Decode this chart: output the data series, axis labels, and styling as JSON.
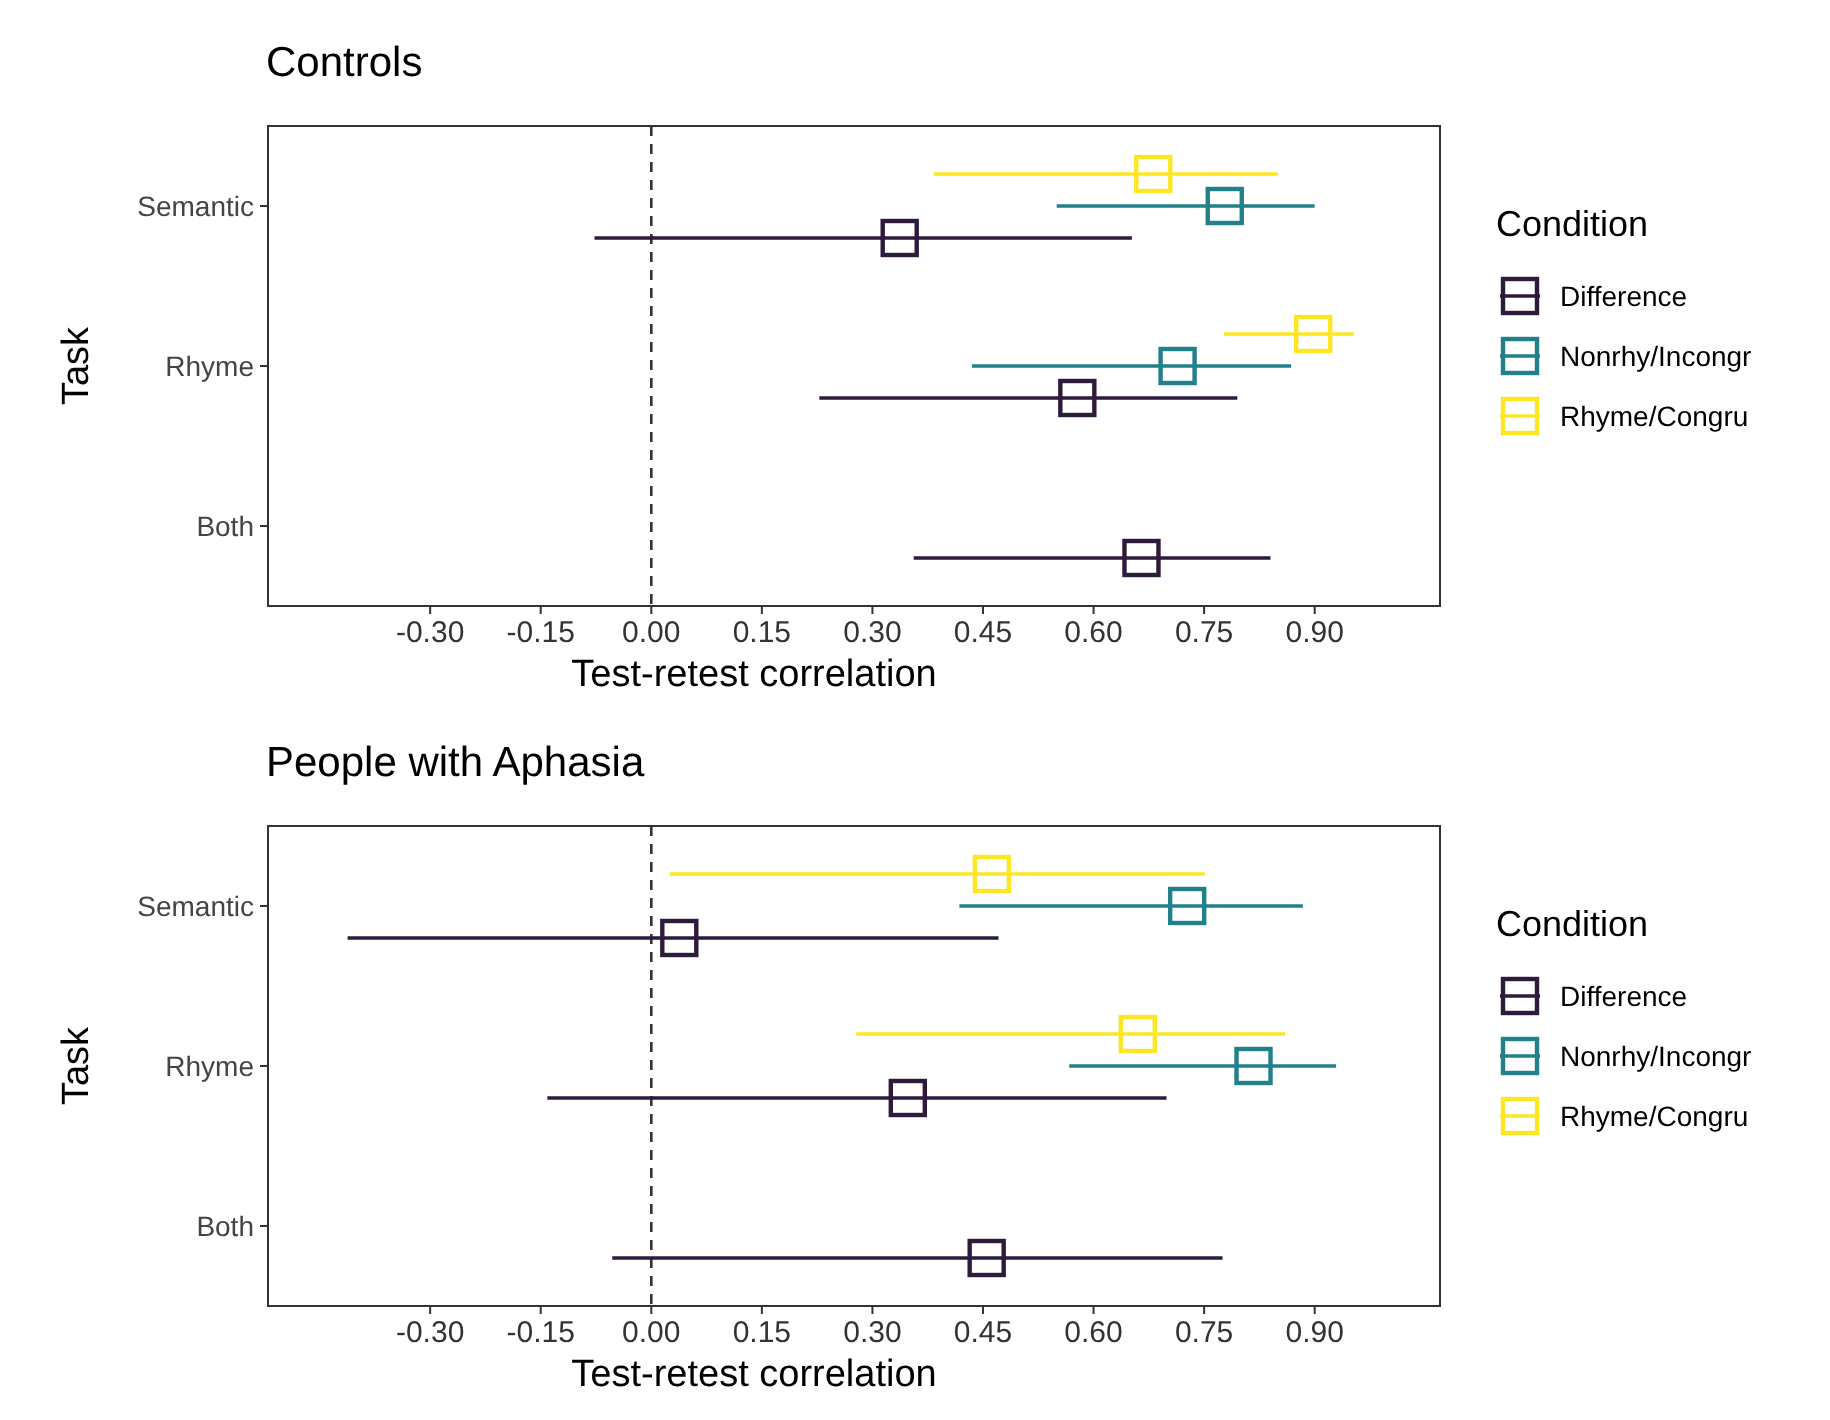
{
  "chart_data": [
    {
      "type": "scatter",
      "title": "Controls",
      "xlabel": "Test-retest correlation",
      "ylabel": "Task",
      "legend_title": "Condition",
      "orientation": "horizontal",
      "categories": [
        "Semantic",
        "Rhyme",
        "Both"
      ],
      "xlim": [
        -0.52,
        1.07
      ],
      "xticks": [
        {
          "value": -0.3,
          "label": "-0.30"
        },
        -0.15,
        {
          "value": 0,
          "label": "0.00"
        },
        0.15,
        {
          "value": 0.3,
          "label": "0.30"
        },
        0.45,
        {
          "value": 0.6,
          "label": "0.60"
        },
        0.75,
        {
          "value": 0.9,
          "label": "0.90"
        }
      ],
      "marker": "square",
      "grid": false,
      "legend": "right",
      "ref_lines": [
        {
          "axis": "x",
          "value": 0,
          "line_style": "dashed",
          "color": "#333333"
        }
      ],
      "series": [
        {
          "name": "Difference",
          "color": "#2e1a3b",
          "values": [
            0.337,
            0.578,
            0.665
          ],
          "errors": [
            [
              -0.077,
              0.652
            ],
            [
              0.228,
              0.795
            ],
            [
              0.356,
              0.84
            ]
          ]
        },
        {
          "name": "Nonrhy/Incongr",
          "color": "#21808a",
          "values": [
            0.778,
            0.714,
            null
          ],
          "errors": [
            [
              0.55,
              0.9
            ],
            [
              0.435,
              0.868
            ],
            null
          ]
        },
        {
          "name": "Rhyme/Congru",
          "color": "#fde725",
          "values": [
            0.681,
            0.898,
            null
          ],
          "errors": [
            [
              0.383,
              0.85
            ],
            [
              0.777,
              0.953
            ],
            null
          ]
        }
      ]
    },
    {
      "type": "scatter",
      "title": "People with Aphasia",
      "xlabel": "Test-retest correlation",
      "ylabel": "Task",
      "legend_title": "Condition",
      "orientation": "horizontal",
      "categories": [
        "Semantic",
        "Rhyme",
        "Both"
      ],
      "xlim": [
        -0.52,
        1.07
      ],
      "xticks": [
        {
          "value": -0.3,
          "label": "-0.30"
        },
        -0.15,
        {
          "value": 0,
          "label": "0.00"
        },
        0.15,
        {
          "value": 0.3,
          "label": "0.30"
        },
        0.45,
        {
          "value": 0.6,
          "label": "0.60"
        },
        0.75,
        {
          "value": 0.9,
          "label": "0.90"
        }
      ],
      "marker": "square",
      "grid": false,
      "legend": "right",
      "ref_lines": [
        {
          "axis": "x",
          "value": 0,
          "line_style": "dashed",
          "color": "#333333"
        }
      ],
      "series": [
        {
          "name": "Difference",
          "color": "#2e1a3b",
          "values": [
            0.038,
            0.348,
            0.455
          ],
          "errors": [
            [
              -0.412,
              0.471
            ],
            [
              -0.141,
              0.699
            ],
            [
              -0.053,
              0.775
            ]
          ]
        },
        {
          "name": "Nonrhy/Incongr",
          "color": "#21808a",
          "values": [
            0.727,
            0.817,
            null
          ],
          "errors": [
            [
              0.418,
              0.884
            ],
            [
              0.567,
              0.929
            ],
            null
          ]
        },
        {
          "name": "Rhyme/Congru",
          "color": "#fde725",
          "values": [
            0.462,
            0.66,
            null
          ],
          "errors": [
            [
              0.025,
              0.751
            ],
            [
              0.278,
              0.86
            ],
            null
          ]
        }
      ]
    }
  ]
}
